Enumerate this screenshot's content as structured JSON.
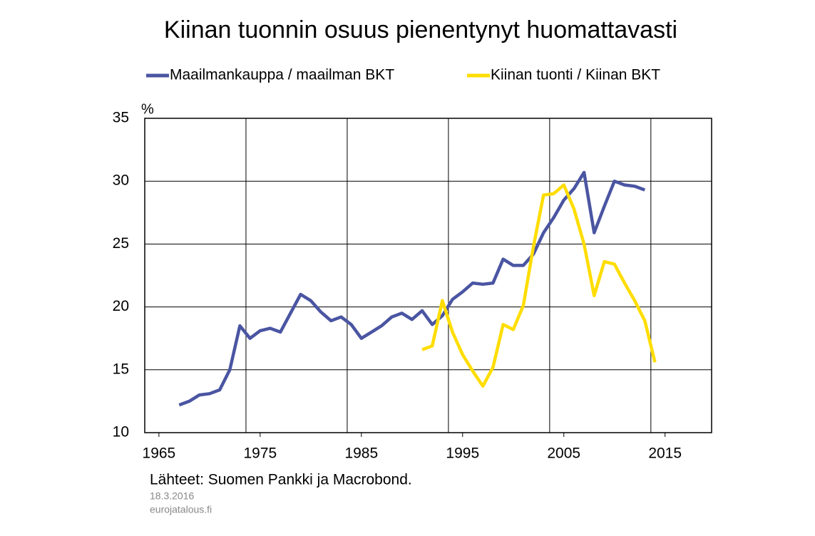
{
  "chart_data": {
    "type": "line",
    "title": "Kiinan tuonnin osuus pienentynyt huomattavasti",
    "y_unit": "%",
    "source": "Lähteet: Suomen Pankki ja Macrobond.",
    "date": "18.3.2016",
    "site": "eurojatalous.fi",
    "xlim": [
      1963.6,
      2019.6
    ],
    "xticks": [
      1965,
      1975,
      1985,
      1995,
      2005,
      2015
    ],
    "xgrid": [
      1973.6,
      1983.6,
      1993.6,
      2003.6,
      2013.6
    ],
    "ylim": [
      10,
      35
    ],
    "yticks": [
      10,
      15,
      20,
      25,
      30,
      35
    ],
    "grid": true,
    "series": [
      {
        "name": "Maailmankauppa / maailman BKT",
        "color": "#4a55a2",
        "x": [
          1967,
          1968,
          1969,
          1970,
          1971,
          1972,
          1973,
          1974,
          1975,
          1976,
          1977,
          1978,
          1979,
          1980,
          1981,
          1982,
          1983,
          1984,
          1985,
          1986,
          1987,
          1988,
          1989,
          1990,
          1991,
          1992,
          1993,
          1994,
          1995,
          1996,
          1997,
          1998,
          1999,
          2000,
          2001,
          2002,
          2003,
          2004,
          2005,
          2006,
          2007,
          2008,
          2009,
          2010,
          2011,
          2012,
          2013
        ],
        "values": [
          12.2,
          12.5,
          13.0,
          13.1,
          13.4,
          15.0,
          18.5,
          17.5,
          18.1,
          18.3,
          18.0,
          19.5,
          21.0,
          20.5,
          19.6,
          18.9,
          19.2,
          18.6,
          17.5,
          18.0,
          18.5,
          19.2,
          19.5,
          19.0,
          19.7,
          18.6,
          19.3,
          20.6,
          21.2,
          21.9,
          21.8,
          21.9,
          23.8,
          23.3,
          23.3,
          24.2,
          25.9,
          27.1,
          28.5,
          29.4,
          30.7,
          25.9,
          28.0,
          30.0,
          29.7,
          29.6,
          29.3
        ]
      },
      {
        "name": "Kiinan tuonti / Kiinan BKT",
        "color": "#ffdd00",
        "x": [
          1991,
          1992,
          1993,
          1994,
          1995,
          1996,
          1997,
          1998,
          1999,
          2000,
          2001,
          2002,
          2003,
          2004,
          2005,
          2006,
          2007,
          2008,
          2009,
          2010,
          2011,
          2012,
          2013,
          2014
        ],
        "values": [
          16.6,
          16.9,
          20.5,
          18.0,
          16.2,
          14.9,
          13.7,
          15.2,
          18.6,
          18.2,
          20.1,
          24.8,
          28.9,
          29.0,
          29.7,
          27.8,
          25.0,
          20.9,
          23.6,
          23.4,
          21.9,
          20.5,
          18.9,
          15.6
        ]
      }
    ]
  }
}
